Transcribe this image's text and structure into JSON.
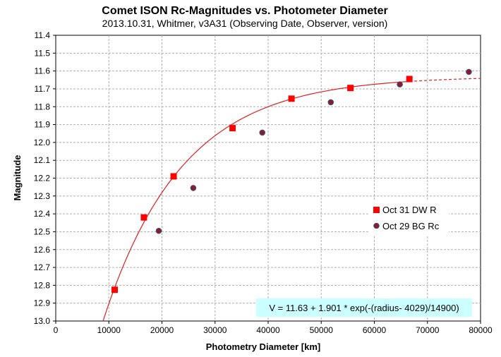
{
  "chart_data": {
    "type": "scatter",
    "title": "Comet ISON Rc-Magnitudes  vs. Photometer Diameter",
    "subtitle": "2013.10.31,  Whitmer, v3A31 (Observing Date, Observer, version)",
    "xlabel": "Photometry Diameter  [km]",
    "ylabel": "Magnitude",
    "xlim": [
      0,
      80000
    ],
    "ylim": [
      11.4,
      13.0
    ],
    "y_reversed": true,
    "x_ticks": [
      0,
      10000,
      20000,
      30000,
      40000,
      50000,
      60000,
      70000,
      80000
    ],
    "y_ticks": [
      11.4,
      11.5,
      11.6,
      11.7,
      11.8,
      11.9,
      12.0,
      12.1,
      12.2,
      12.3,
      12.4,
      12.5,
      12.6,
      12.7,
      12.8,
      12.9,
      13.0
    ],
    "x_tick_labels": [
      "0",
      "10000",
      "20000",
      "30000",
      "40000",
      "50000",
      "60000",
      "70000",
      "80000"
    ],
    "y_tick_labels": [
      "11.4",
      "11.5",
      "11.6",
      "11.7",
      "11.8",
      "11.9",
      "12.0",
      "12.1",
      "12.2",
      "12.3",
      "12.4",
      "12.5",
      "12.6",
      "12.7",
      "12.8",
      "12.9",
      "13.0"
    ],
    "grid": true,
    "legend_position": "right",
    "series": [
      {
        "name": "Oct 31 DW R",
        "marker": "square",
        "color": "#ff0000",
        "x": [
          11100,
          16600,
          22200,
          33300,
          44400,
          55500,
          66600
        ],
        "y": [
          12.825,
          12.42,
          12.19,
          11.92,
          11.755,
          11.695,
          11.645
        ]
      },
      {
        "name": "Oct 29 BG Rc",
        "marker": "circle",
        "color": "#8b1a2b",
        "x": [
          19400,
          25900,
          38900,
          51800,
          64800,
          77800
        ],
        "y": [
          12.495,
          12.255,
          11.945,
          11.775,
          11.675,
          11.605
        ]
      }
    ],
    "fit": {
      "label": "V = 11.63 + 1.901 * exp(-(radius- 4029)/14900)",
      "a": 11.63,
      "b": 1.901,
      "x0": 4029,
      "scale": 14900,
      "color": "#dd2222",
      "solid_until": 66600
    },
    "colors": {
      "grid": "#b0b0b0",
      "equation_box": "#ccffff"
    }
  }
}
